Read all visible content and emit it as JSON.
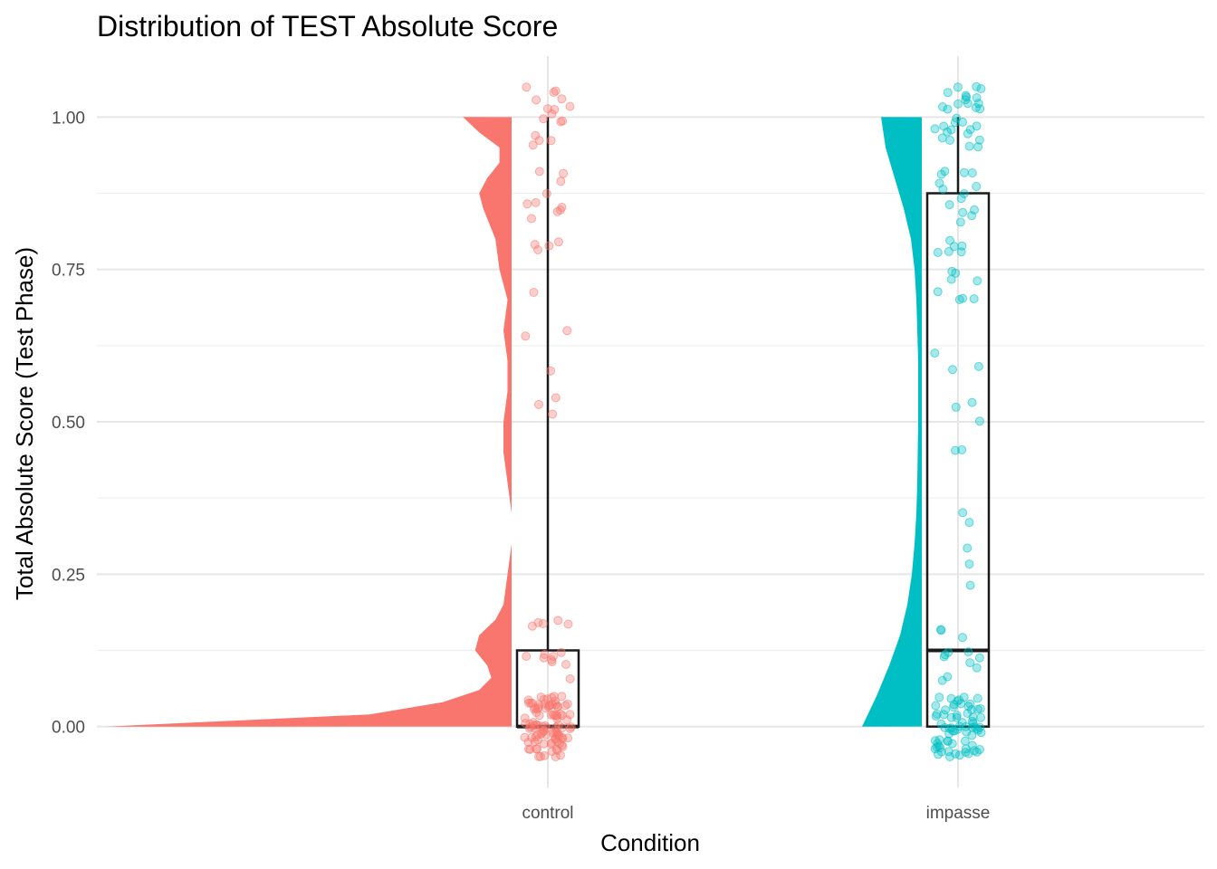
{
  "chart_data": {
    "type": "raincloud",
    "title": "Distribution of TEST Absolute Score",
    "xlabel": "Condition",
    "ylabel": "Total Absolute Score (Test Phase)",
    "categories": [
      "control",
      "impasse"
    ],
    "ylim": [
      -0.1,
      1.1
    ],
    "yticks": [
      0.0,
      0.25,
      0.5,
      0.75,
      1.0
    ],
    "ytick_labels": [
      "0.00",
      "0.25",
      "0.50",
      "0.75",
      "1.00"
    ],
    "grid": true,
    "legend": "none",
    "series": [
      {
        "category": "control",
        "color": "#F8766D",
        "box": {
          "q1": 0.0,
          "median": 0.0,
          "q3": 0.125,
          "whisker_low": 0.0,
          "whisker_high": 1.0
        },
        "half_violin": {
          "y": [
            0.0,
            0.02,
            0.04,
            0.06,
            0.08,
            0.1,
            0.125,
            0.15,
            0.175,
            0.2,
            0.25,
            0.3,
            0.35,
            0.4,
            0.45,
            0.5,
            0.55,
            0.6,
            0.65,
            0.7,
            0.75,
            0.8,
            0.85,
            0.875,
            0.9,
            0.925,
            0.95,
            0.975,
            1.0
          ],
          "density": [
            1.0,
            0.35,
            0.17,
            0.08,
            0.05,
            0.06,
            0.09,
            0.08,
            0.04,
            0.02,
            0.01,
            0.0,
            0.0,
            0.01,
            0.02,
            0.02,
            0.01,
            0.01,
            0.02,
            0.01,
            0.03,
            0.04,
            0.07,
            0.08,
            0.06,
            0.03,
            0.03,
            0.08,
            0.12
          ]
        },
        "points": [
          0.0,
          0.0,
          0.0,
          0.0,
          0.0,
          0.0,
          0.0,
          0.0,
          0.0,
          0.0,
          0.0,
          0.0,
          0.0,
          0.0,
          0.0,
          0.0,
          0.0,
          0.0,
          0.0,
          0.0,
          0.0,
          0.0,
          0.0,
          0.0,
          0.0,
          0.0,
          0.0,
          0.0,
          0.0,
          0.0,
          0.0,
          0.0,
          0.0,
          0.0,
          0.0,
          0.0,
          0.0,
          0.0,
          0.0,
          0.0,
          0.0,
          0.0,
          0.0,
          0.0,
          0.0,
          0.0,
          0.0,
          0.0,
          0.0,
          0.0,
          0.0,
          0.0,
          0.0,
          0.0,
          0.0,
          0.0,
          0.0,
          0.0,
          0.0,
          0.0,
          0.0,
          0.0,
          0.0,
          0.0,
          0.0,
          0.0,
          0.0,
          0.0,
          0.0,
          0.0,
          0.0,
          0.0,
          0.0,
          0.0,
          0.0,
          0.0,
          0.0,
          0.0,
          0.0,
          0.0,
          0.0,
          0.0,
          0.0,
          0.0,
          0.0,
          0.0,
          0.0,
          0.0,
          0.0,
          0.0,
          0.0,
          0.0,
          0.0,
          0.0,
          0.0,
          0.0,
          0.0,
          0.0,
          0.0,
          0.0,
          0.125,
          0.125,
          0.125,
          0.125,
          0.125,
          0.125,
          0.125,
          0.125,
          0.125,
          0.125,
          0.125,
          0.125,
          0.125,
          0.125,
          0.5,
          0.5,
          0.5,
          0.625,
          0.625,
          0.625,
          0.75,
          0.75,
          0.75,
          0.75,
          0.75,
          0.875,
          0.875,
          0.875,
          0.875,
          0.875,
          0.875,
          0.875,
          0.875,
          0.875,
          0.875,
          1.0,
          1.0,
          1.0,
          1.0,
          1.0,
          1.0,
          1.0,
          1.0,
          1.0,
          1.0,
          1.0,
          1.0,
          1.0,
          1.0,
          1.0,
          1.0
        ]
      },
      {
        "category": "impasse",
        "color": "#00BFC4",
        "box": {
          "q1": 0.0,
          "median": 0.125,
          "q3": 0.875,
          "whisker_low": 0.0,
          "whisker_high": 1.0
        },
        "half_violin": {
          "y": [
            0.0,
            0.05,
            0.1,
            0.15,
            0.2,
            0.25,
            0.3,
            0.35,
            0.4,
            0.45,
            0.5,
            0.55,
            0.6,
            0.65,
            0.7,
            0.75,
            0.8,
            0.85,
            0.9,
            0.95,
            1.0
          ],
          "density": [
            0.66,
            0.5,
            0.36,
            0.24,
            0.16,
            0.11,
            0.08,
            0.06,
            0.05,
            0.045,
            0.04,
            0.04,
            0.04,
            0.05,
            0.06,
            0.08,
            0.12,
            0.2,
            0.3,
            0.4,
            0.45
          ]
        },
        "points": [
          0.0,
          0.0,
          0.0,
          0.0,
          0.0,
          0.0,
          0.0,
          0.0,
          0.0,
          0.0,
          0.0,
          0.0,
          0.0,
          0.0,
          0.0,
          0.0,
          0.0,
          0.0,
          0.0,
          0.0,
          0.0,
          0.0,
          0.0,
          0.0,
          0.0,
          0.0,
          0.0,
          0.0,
          0.0,
          0.0,
          0.0,
          0.0,
          0.0,
          0.0,
          0.0,
          0.0,
          0.0,
          0.0,
          0.0,
          0.0,
          0.0,
          0.0,
          0.0,
          0.0,
          0.0,
          0.0,
          0.0,
          0.0,
          0.0,
          0.0,
          0.0,
          0.0,
          0.0,
          0.0,
          0.0,
          0.0,
          0.0,
          0.0,
          0.0,
          0.0,
          0.0,
          0.0,
          0.0,
          0.0,
          0.0,
          0.0,
          0.0,
          0.0,
          0.0,
          0.0,
          0.125,
          0.125,
          0.125,
          0.125,
          0.125,
          0.125,
          0.125,
          0.125,
          0.125,
          0.125,
          0.125,
          0.125,
          0.25,
          0.25,
          0.25,
          0.375,
          0.375,
          0.5,
          0.5,
          0.5,
          0.5,
          0.5,
          0.625,
          0.625,
          0.625,
          0.75,
          0.75,
          0.75,
          0.75,
          0.75,
          0.75,
          0.75,
          0.75,
          0.75,
          0.75,
          0.75,
          0.75,
          0.75,
          0.75,
          0.875,
          0.875,
          0.875,
          0.875,
          0.875,
          0.875,
          0.875,
          0.875,
          0.875,
          0.875,
          0.875,
          0.875,
          0.875,
          0.875,
          1.0,
          1.0,
          1.0,
          1.0,
          1.0,
          1.0,
          1.0,
          1.0,
          1.0,
          1.0,
          1.0,
          1.0,
          1.0,
          1.0,
          1.0,
          1.0,
          1.0,
          1.0,
          1.0,
          1.0,
          1.0,
          1.0,
          1.0,
          1.0,
          1.0,
          1.0,
          1.0,
          1.0,
          1.0,
          1.0
        ]
      }
    ]
  }
}
